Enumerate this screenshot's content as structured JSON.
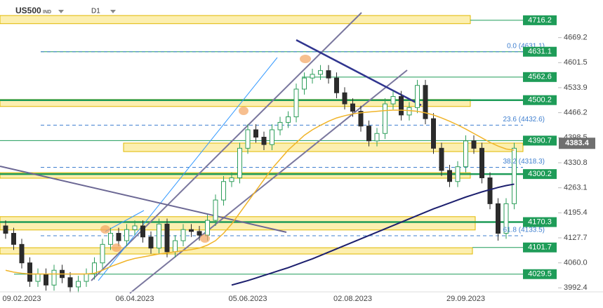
{
  "header": {
    "symbol": "US500",
    "market": "IND",
    "timeframe": "D1"
  },
  "chart_data": {
    "type": "candlestick",
    "categories": [
      null,
      null,
      "09.02.2023",
      null,
      null,
      null,
      null,
      null,
      null,
      null,
      null,
      null,
      null,
      null,
      null,
      null,
      "06.04.2023",
      null,
      null,
      null,
      null,
      null,
      null,
      null,
      null,
      null,
      null,
      null,
      null,
      null,
      "05.06.2023",
      null,
      null,
      null,
      null,
      null,
      null,
      null,
      null,
      null,
      null,
      null,
      null,
      "02.08.2023",
      null,
      null,
      null,
      null,
      null,
      null,
      null,
      null,
      null,
      null,
      null,
      null,
      null,
      "29.09.2023",
      null,
      null,
      null,
      null,
      null,
      null
    ],
    "open": [
      4160,
      4140,
      4110,
      4060,
      4010,
      4030,
      4000,
      4040,
      4020,
      3995,
      4010,
      4030,
      4060,
      4110,
      4140,
      4120,
      4150,
      4160,
      4130,
      4100,
      4165,
      4090,
      4120,
      4150,
      4145,
      4135,
      4175,
      4230,
      4280,
      4290,
      4370,
      4420,
      4400,
      4380,
      4420,
      4440,
      4455,
      4530,
      4560,
      4570,
      4580,
      4560,
      4520,
      4490,
      4470,
      4430,
      4390,
      4410,
      4490,
      4510,
      4460,
      4480,
      4540,
      4450,
      4370,
      4310,
      4280,
      4320,
      4390,
      4370,
      4290,
      4220,
      4140,
      4220
    ],
    "high": [
      4175,
      4155,
      4125,
      4075,
      4045,
      4045,
      4055,
      4055,
      4035,
      4025,
      4045,
      4075,
      4125,
      4155,
      4155,
      4165,
      4175,
      4175,
      4145,
      4180,
      4180,
      4135,
      4165,
      4165,
      4160,
      4190,
      4245,
      4295,
      4305,
      4385,
      4435,
      4435,
      4415,
      4435,
      4455,
      4470,
      4545,
      4575,
      4585,
      4595,
      4595,
      4575,
      4535,
      4505,
      4485,
      4445,
      4425,
      4505,
      4525,
      4525,
      4495,
      4555,
      4555,
      4465,
      4385,
      4325,
      4335,
      4405,
      4405,
      4385,
      4305,
      4235,
      4235,
      4385
    ],
    "low": [
      4125,
      4095,
      4045,
      3995,
      3995,
      3985,
      3985,
      4005,
      3980,
      3980,
      3995,
      4015,
      4045,
      4095,
      4105,
      4105,
      4135,
      4115,
      4085,
      4085,
      4075,
      4075,
      4105,
      4130,
      4120,
      4120,
      4160,
      4215,
      4265,
      4275,
      4355,
      4385,
      4365,
      4365,
      4405,
      4425,
      4440,
      4515,
      4545,
      4555,
      4545,
      4505,
      4475,
      4455,
      4415,
      4375,
      4375,
      4395,
      4475,
      4445,
      4445,
      4465,
      4435,
      4355,
      4295,
      4265,
      4265,
      4305,
      4355,
      4275,
      4205,
      4120,
      4125,
      4205
    ],
    "close": [
      4140,
      4110,
      4060,
      4010,
      4030,
      4000,
      4040,
      4020,
      3995,
      4010,
      4030,
      4060,
      4110,
      4140,
      4120,
      4150,
      4160,
      4130,
      4100,
      4165,
      4090,
      4120,
      4150,
      4145,
      4135,
      4175,
      4230,
      4280,
      4290,
      4370,
      4420,
      4400,
      4380,
      4420,
      4440,
      4455,
      4530,
      4560,
      4570,
      4580,
      4560,
      4520,
      4490,
      4470,
      4430,
      4390,
      4410,
      4490,
      4510,
      4460,
      4480,
      4540,
      4450,
      4370,
      4310,
      4280,
      4320,
      4390,
      4370,
      4290,
      4220,
      4140,
      4220,
      4370
    ],
    "up_color": "#2e9e5b",
    "down_color": "#2b2b2b",
    "lines": [
      {
        "color": "#f0b429",
        "values": [
          4040,
          4035,
          4032,
          4030,
          4030,
          4030,
          4030,
          4030,
          4030,
          4030,
          4030,
          4032,
          4040,
          4050,
          4058,
          4066,
          4072,
          4076,
          4080,
          4084,
          4087,
          4090,
          4093,
          4096,
          4100,
          4108,
          4120,
          4140,
          4165,
          4195,
          4225,
          4255,
          4285,
          4315,
          4340,
          4365,
          4385,
          4405,
          4420,
          4432,
          4443,
          4452,
          4458,
          4463,
          4466,
          4468,
          4470,
          4472,
          4473,
          4473,
          4472,
          4470,
          4466,
          4460,
          4452,
          4443,
          4433,
          4422,
          4410,
          4398,
          4386,
          4376,
          4368,
          4365
        ]
      },
      {
        "color": "#1c1f6e",
        "values": [
          null,
          null,
          null,
          null,
          null,
          null,
          null,
          null,
          null,
          null,
          null,
          null,
          null,
          null,
          null,
          null,
          null,
          null,
          null,
          null,
          null,
          null,
          null,
          null,
          null,
          null,
          null,
          null,
          4000,
          4006,
          4012,
          4019,
          4026,
          4033,
          4040,
          4047,
          4055,
          4063,
          4071,
          4080,
          4089,
          4098,
          4107,
          4116,
          4125,
          4134,
          4143,
          4152,
          4161,
          4170,
          4179,
          4188,
          4197,
          4206,
          4214,
          4222,
          4230,
          4238,
          4245,
          4252,
          4258,
          4264,
          4269,
          4273
        ]
      }
    ],
    "ylim": [
      3974,
      4771
    ],
    "yticks": [
      4669.2,
      4601.5,
      4533.9,
      4466.2,
      4398.5,
      4330.8,
      4263.1,
      4195.4,
      4127.7,
      {
        "value": 4060,
        "label": "4060.0"
      },
      3992.4
    ],
    "levels": [
      4716.2,
      4631.1,
      4562.6,
      4500.2,
      4390.7,
      4300.2,
      4170.3,
      4101.7,
      4029.5
    ],
    "level_color": "#1e9c58",
    "current_price": 4383.4,
    "fib_levels": [
      {
        "value": 4631.1,
        "label": "0.0 (4631.1)"
      },
      {
        "value": 4432.6,
        "label": "23.6 (4432.6)"
      },
      {
        "value": 4318.3,
        "label": "38.2 (4318.3)"
      },
      {
        "value": 4133.5,
        "label": "61.8 (4133.5)"
      }
    ],
    "fib_color": "#3f7fcf",
    "zones": [
      [
        4707,
        4729
      ],
      [
        4483,
        4502
      ],
      [
        4361,
        4384
      ],
      [
        4289,
        4304
      ],
      [
        4149,
        4185
      ],
      [
        4084,
        4101
      ]
    ],
    "zone_color": "#fcefb0"
  }
}
